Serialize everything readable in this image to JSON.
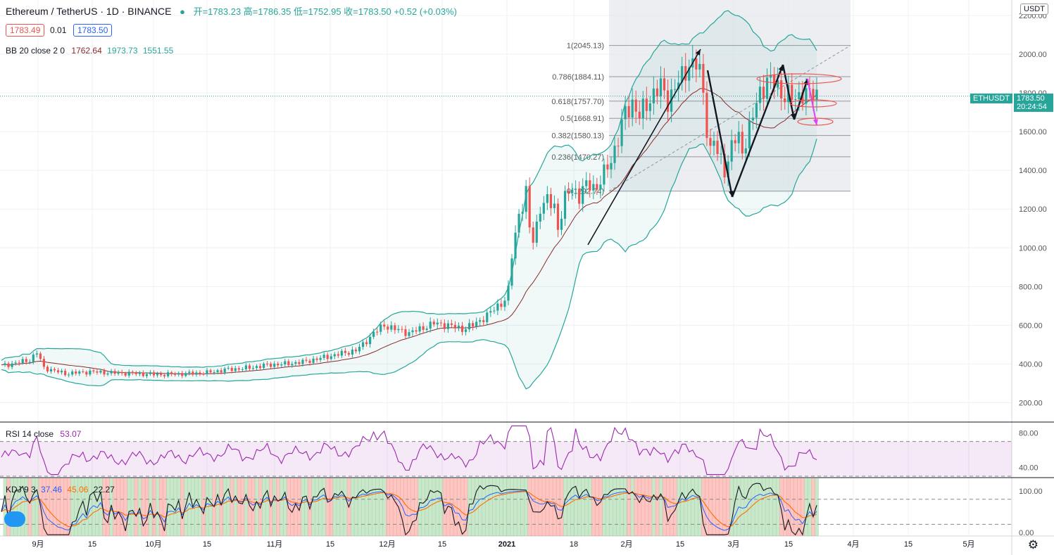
{
  "header": {
    "symbol": "Ethereum / TetherUS · 1D · BINANCE",
    "ohlc_text": "开=1783.23 高=1786.35 低=1752.95 收=1783.50 +0.52 (+0.03%)",
    "bid": "1783.49",
    "spread": "0.01",
    "ask": "1783.50",
    "bb_label": "BB 20 close 2 0",
    "bb_mid": "1762.64",
    "bb_upper": "1973.73",
    "bb_lower": "1551.55"
  },
  "price_axis": {
    "currency": "USDT",
    "symbol_tag": "ETHUSDT",
    "last_price": "1783.50",
    "countdown": "20:24:54"
  },
  "colors": {
    "up": "#26a69a",
    "down": "#ef5350",
    "bb": "#26a69a",
    "basis": "#8b2a2a",
    "rsi": "#9c27b0",
    "k": "#2962ff",
    "d": "#ff6d00",
    "j": "#131722",
    "fib_box": "#e7e8ec"
  },
  "chart_data": [
    {
      "type": "candlestick",
      "title": "Ethereum / TetherUS · 1D · BINANCE",
      "ylim": [
        100,
        2280
      ],
      "y_ticks": [
        "2200.00",
        "2000.00",
        "1800.00",
        "1600.00",
        "1400.00",
        "1200.00",
        "1000.00",
        "800.00",
        "600.00",
        "400.00",
        "200.00"
      ],
      "x_ticks": [
        "9月",
        "15",
        "10月",
        "15",
        "11月",
        "15",
        "12月",
        "15",
        "2021",
        "18",
        "2月",
        "15",
        "3月",
        "15",
        "4月",
        "15",
        "5月"
      ],
      "close_path": [
        [
          0,
          390
        ],
        [
          8,
          420
        ],
        [
          10,
          460
        ],
        [
          12,
          380
        ],
        [
          18,
          350
        ],
        [
          25,
          360
        ],
        [
          30,
          355
        ],
        [
          38,
          350
        ],
        [
          45,
          345
        ],
        [
          52,
          350
        ],
        [
          58,
          355
        ],
        [
          63,
          370
        ],
        [
          70,
          380
        ],
        [
          75,
          395
        ],
        [
          80,
          400
        ],
        [
          85,
          410
        ],
        [
          90,
          430
        ],
        [
          95,
          450
        ],
        [
          100,
          470
        ],
        [
          102,
          500
        ],
        [
          105,
          560
        ],
        [
          108,
          600
        ],
        [
          111,
          580
        ],
        [
          115,
          560
        ],
        [
          118,
          580
        ],
        [
          122,
          610
        ],
        [
          126,
          600
        ],
        [
          130,
          580
        ],
        [
          133,
          600
        ],
        [
          137,
          650
        ],
        [
          140,
          700
        ],
        [
          142,
          730
        ],
        [
          143,
          780
        ],
        [
          144,
          960
        ],
        [
          145,
          1070
        ],
        [
          146,
          1180
        ],
        [
          147,
          1220
        ],
        [
          148,
          1280
        ],
        [
          149,
          1100
        ],
        [
          150,
          1040
        ],
        [
          151,
          1120
        ],
        [
          152,
          1210
        ],
        [
          154,
          1240
        ],
        [
          156,
          1220
        ],
        [
          157,
          1100
        ],
        [
          159,
          1250
        ],
        [
          161,
          1320
        ],
        [
          163,
          1260
        ],
        [
          164,
          1300
        ],
        [
          166,
          1330
        ],
        [
          168,
          1310
        ],
        [
          170,
          1380
        ],
        [
          172,
          1460
        ],
        [
          174,
          1560
        ],
        [
          176,
          1700
        ],
        [
          178,
          1750
        ],
        [
          180,
          1680
        ],
        [
          182,
          1740
        ],
        [
          184,
          1800
        ],
        [
          186,
          1830
        ],
        [
          188,
          1760
        ],
        [
          190,
          1830
        ],
        [
          192,
          1880
        ],
        [
          194,
          1950
        ],
        [
          196,
          1950
        ],
        [
          197,
          1900
        ],
        [
          198,
          1800
        ],
        [
          199,
          1620
        ],
        [
          200,
          1500
        ],
        [
          201,
          1560
        ],
        [
          202,
          1480
        ],
        [
          203,
          1450
        ],
        [
          204,
          1410
        ],
        [
          205,
          1450
        ],
        [
          206,
          1530
        ],
        [
          207,
          1560
        ],
        [
          208,
          1560
        ],
        [
          209,
          1500
        ],
        [
          210,
          1560
        ],
        [
          212,
          1680
        ],
        [
          214,
          1800
        ],
        [
          216,
          1870
        ],
        [
          218,
          1850
        ],
        [
          220,
          1800
        ],
        [
          222,
          1790
        ],
        [
          224,
          1760
        ],
        [
          226,
          1810
        ],
        [
          228,
          1790
        ],
        [
          230,
          1783.5
        ]
      ]
    },
    {
      "type": "line",
      "title": "RSI 14 close",
      "value": "53.07",
      "ylim": [
        30,
        90
      ],
      "y_ticks": [
        "80.00",
        "40.00"
      ],
      "levels": [
        70,
        30
      ]
    },
    {
      "type": "line",
      "title": "KDJ 9 3",
      "values": [
        "37.46",
        "45.06",
        "22.27"
      ],
      "ylim": [
        -8,
        130
      ],
      "y_ticks": [
        "100.00",
        "0.00"
      ],
      "levels": [
        80,
        20
      ]
    }
  ],
  "fib": [
    {
      "label": "1(2045.13)",
      "value": 2045.13
    },
    {
      "label": "0.786(1884.11)",
      "value": 1884.11
    },
    {
      "label": "0.618(1757.70)",
      "value": 1757.7
    },
    {
      "label": "0.5(1668.91)",
      "value": 1668.91
    },
    {
      "label": "0.382(1580.13)",
      "value": 1580.13
    },
    {
      "label": "0.236(1470.27)",
      "value": 1470.27
    },
    {
      "label": "0(1292.74)",
      "value": 1292.74
    }
  ]
}
